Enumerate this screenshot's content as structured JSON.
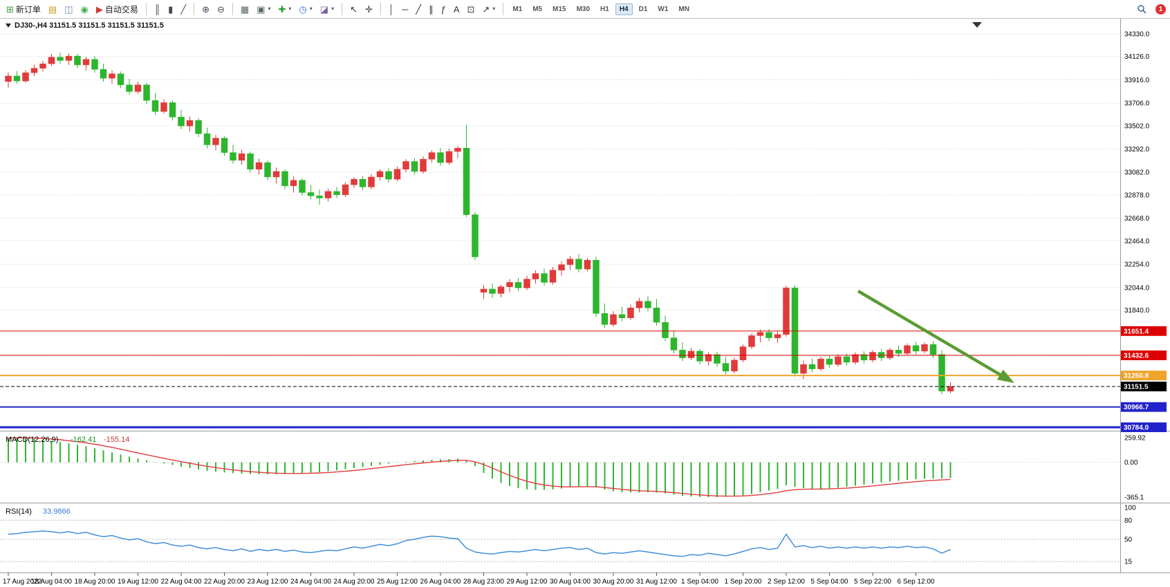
{
  "toolbar": {
    "buttons": [
      {
        "name": "new-order-button",
        "glyph": "⊞",
        "color": "#3f9e3f",
        "label": "新订单"
      },
      {
        "name": "profiles-button",
        "glyph": "▤",
        "color": "#c99b1f"
      },
      {
        "name": "print-preview-button",
        "glyph": "◫",
        "color": "#6b86b8"
      },
      {
        "name": "community-button",
        "glyph": "◉",
        "color": "#3fae49"
      },
      {
        "name": "autotrading-button",
        "glyph": "▶",
        "color": "#cc3b3b",
        "label": "自动交易"
      },
      {
        "sep": true
      },
      {
        "name": "bar-chart-mode-button",
        "glyph": "║",
        "color": "#445"
      },
      {
        "name": "candlestick-mode-button",
        "glyph": "▮",
        "color": "#445"
      },
      {
        "name": "line-chart-mode-button",
        "glyph": "╱",
        "color": "#445"
      },
      {
        "sep": true
      },
      {
        "name": "zoom-in-button",
        "glyph": "⊕",
        "color": "#445"
      },
      {
        "name": "zoom-out-button",
        "glyph": "⊖",
        "color": "#445"
      },
      {
        "sep": true
      },
      {
        "name": "tile-windows-button",
        "glyph": "▦",
        "color": "#566"
      },
      {
        "name": "cascade-windows-button",
        "glyph": "▣",
        "color": "#566",
        "caret": true
      },
      {
        "name": "indicators-button",
        "glyph": "✚",
        "color": "#2e9e2e",
        "caret": true
      },
      {
        "name": "periods-button",
        "glyph": "◷",
        "color": "#2e6fd0",
        "caret": true
      },
      {
        "name": "templates-button",
        "glyph": "◪",
        "color": "#7a5fa0",
        "caret": true
      },
      {
        "sep": true
      },
      {
        "name": "cursor-button",
        "glyph": "↖",
        "color": "#333"
      },
      {
        "name": "crosshair-button",
        "glyph": "✛",
        "color": "#333"
      },
      {
        "sep": true
      },
      {
        "name": "vertical-line-button",
        "glyph": "│",
        "color": "#333"
      },
      {
        "name": "horizontal-line-button",
        "glyph": "─",
        "color": "#333"
      },
      {
        "name": "trendline-button",
        "glyph": "╱",
        "color": "#333"
      },
      {
        "name": "channel-button",
        "glyph": "∥",
        "color": "#333"
      },
      {
        "name": "fibonacci-button",
        "glyph": "ƒ",
        "color": "#333"
      },
      {
        "name": "text-button",
        "glyph": "A",
        "color": "#333"
      },
      {
        "name": "label-button",
        "glyph": "⊡",
        "color": "#333"
      },
      {
        "name": "arrows-button",
        "glyph": "↗",
        "color": "#333",
        "caret": true
      },
      {
        "sep": true
      }
    ],
    "timeframes": [
      "M1",
      "M5",
      "M15",
      "M30",
      "H1",
      "H4",
      "D1",
      "W1",
      "MN"
    ],
    "active_timeframe": "H4",
    "notification_badge": "1"
  },
  "chart": {
    "header": "DJ30-,H4  31151.5 31151.5 31151.5 31151.5"
  },
  "chart_data": {
    "type": "candlestick",
    "symbol": "DJ30-",
    "timeframe": "H4",
    "ohlc_format": [
      "open",
      "high",
      "low",
      "close"
    ],
    "ohlc": [
      [
        33900,
        33985,
        33845,
        33950
      ],
      [
        33950,
        33995,
        33880,
        33905
      ],
      [
        33905,
        34005,
        33890,
        33980
      ],
      [
        33980,
        34050,
        33950,
        34020
      ],
      [
        34020,
        34085,
        33990,
        34060
      ],
      [
        34060,
        34150,
        34040,
        34120
      ],
      [
        34120,
        34160,
        34060,
        34090
      ],
      [
        34090,
        34155,
        34050,
        34130
      ],
      [
        34130,
        34150,
        34020,
        34050
      ],
      [
        34050,
        34125,
        34000,
        34100
      ],
      [
        34100,
        34130,
        33980,
        34010
      ],
      [
        34010,
        34060,
        33900,
        33930
      ],
      [
        33930,
        34000,
        33880,
        33970
      ],
      [
        33970,
        33990,
        33840,
        33870
      ],
      [
        33870,
        33925,
        33780,
        33810
      ],
      [
        33810,
        33900,
        33790,
        33870
      ],
      [
        33870,
        33890,
        33700,
        33730
      ],
      [
        33730,
        33795,
        33600,
        33630
      ],
      [
        33630,
        33740,
        33610,
        33710
      ],
      [
        33710,
        33730,
        33550,
        33580
      ],
      [
        33580,
        33645,
        33470,
        33500
      ],
      [
        33500,
        33585,
        33450,
        33550
      ],
      [
        33550,
        33570,
        33400,
        33430
      ],
      [
        33430,
        33485,
        33300,
        33330
      ],
      [
        33330,
        33420,
        33280,
        33390
      ],
      [
        33390,
        33405,
        33230,
        33260
      ],
      [
        33260,
        33330,
        33160,
        33190
      ],
      [
        33190,
        33285,
        33150,
        33250
      ],
      [
        33250,
        33270,
        33080,
        33110
      ],
      [
        33110,
        33205,
        33060,
        33170
      ],
      [
        33170,
        33190,
        33010,
        33040
      ],
      [
        33040,
        33125,
        32980,
        33090
      ],
      [
        33090,
        33110,
        32930,
        32960
      ],
      [
        32960,
        33045,
        32900,
        33010
      ],
      [
        33010,
        33030,
        32870,
        32900
      ],
      [
        32900,
        32965,
        32840,
        32870
      ],
      [
        32870,
        32925,
        32790,
        32850
      ],
      [
        32850,
        32935,
        32820,
        32910
      ],
      [
        32910,
        32950,
        32850,
        32880
      ],
      [
        32880,
        32995,
        32860,
        32970
      ],
      [
        32970,
        33040,
        32940,
        33020
      ],
      [
        33020,
        33050,
        32920,
        32950
      ],
      [
        32950,
        33065,
        32930,
        33040
      ],
      [
        33040,
        33110,
        33010,
        33090
      ],
      [
        33090,
        33120,
        32990,
        33020
      ],
      [
        33020,
        33135,
        33000,
        33110
      ],
      [
        33110,
        33200,
        33080,
        33180
      ],
      [
        33180,
        33210,
        33060,
        33090
      ],
      [
        33090,
        33225,
        33070,
        33200
      ],
      [
        33200,
        33280,
        33170,
        33260
      ],
      [
        33260,
        33300,
        33140,
        33170
      ],
      [
        33170,
        33295,
        33150,
        33270
      ],
      [
        33270,
        33320,
        33210,
        33300
      ],
      [
        33300,
        33510,
        32680,
        32700
      ],
      [
        32700,
        32725,
        32290,
        32320
      ],
      [
        32000,
        32065,
        31940,
        32030
      ],
      [
        32030,
        32080,
        31950,
        31990
      ],
      [
        31990,
        32070,
        31955,
        32050
      ],
      [
        32050,
        32120,
        32000,
        32090
      ],
      [
        32090,
        32130,
        32010,
        32040
      ],
      [
        32040,
        32150,
        32020,
        32120
      ],
      [
        32120,
        32200,
        32080,
        32170
      ],
      [
        32170,
        32215,
        32060,
        32090
      ],
      [
        32090,
        32230,
        32070,
        32200
      ],
      [
        32200,
        32280,
        32150,
        32250
      ],
      [
        32250,
        32330,
        32200,
        32300
      ],
      [
        32300,
        32345,
        32180,
        32210
      ],
      [
        32210,
        32310,
        32190,
        32290
      ],
      [
        32290,
        32320,
        31780,
        31810
      ],
      [
        31810,
        31900,
        31680,
        31710
      ],
      [
        31710,
        31830,
        31690,
        31800
      ],
      [
        31800,
        31870,
        31740,
        31770
      ],
      [
        31770,
        31890,
        31750,
        31860
      ],
      [
        31860,
        31950,
        31820,
        31920
      ],
      [
        31920,
        31965,
        31830,
        31860
      ],
      [
        31860,
        31940,
        31700,
        31730
      ],
      [
        31730,
        31790,
        31560,
        31590
      ],
      [
        31590,
        31660,
        31450,
        31480
      ],
      [
        31480,
        31550,
        31380,
        31410
      ],
      [
        31410,
        31500,
        31390,
        31470
      ],
      [
        31470,
        31490,
        31350,
        31380
      ],
      [
        31380,
        31460,
        31340,
        31440
      ],
      [
        31440,
        31465,
        31330,
        31360
      ],
      [
        31360,
        31420,
        31260,
        31290
      ],
      [
        31290,
        31410,
        31270,
        31390
      ],
      [
        31390,
        31530,
        31370,
        31510
      ],
      [
        31510,
        31630,
        31490,
        31610
      ],
      [
        31610,
        31665,
        31550,
        31640
      ],
      [
        31640,
        31670,
        31560,
        31590
      ],
      [
        31590,
        31655,
        31545,
        31620
      ],
      [
        31620,
        32060,
        31600,
        32040
      ],
      [
        32040,
        32065,
        31240,
        31270
      ],
      [
        31270,
        31385,
        31220,
        31350
      ],
      [
        31350,
        31405,
        31280,
        31310
      ],
      [
        31310,
        31420,
        31290,
        31400
      ],
      [
        31400,
        31435,
        31320,
        31350
      ],
      [
        31350,
        31445,
        31330,
        31420
      ],
      [
        31420,
        31450,
        31340,
        31370
      ],
      [
        31370,
        31460,
        31350,
        31440
      ],
      [
        31440,
        31470,
        31360,
        31390
      ],
      [
        31390,
        31480,
        31370,
        31460
      ],
      [
        31460,
        31490,
        31380,
        31410
      ],
      [
        31410,
        31500,
        31390,
        31480
      ],
      [
        31480,
        31520,
        31420,
        31450
      ],
      [
        31450,
        31540,
        31430,
        31520
      ],
      [
        31520,
        31555,
        31440,
        31470
      ],
      [
        31470,
        31550,
        31450,
        31530
      ],
      [
        31530,
        31560,
        31410,
        31440
      ],
      [
        31440,
        31480,
        31080,
        31110
      ],
      [
        31110,
        31190,
        31090,
        31151.5
      ]
    ],
    "time_labels": [
      "17 Aug 2022",
      "18 Aug 04:00",
      "18 Aug 20:00",
      "19 Aug 12:00",
      "22 Aug 04:00",
      "22 Aug 20:00",
      "23 Aug 12:00",
      "24 Aug 04:00",
      "24 Aug 20:00",
      "25 Aug 12:00",
      "26 Aug 04:00",
      "28 Aug 23:00",
      "29 Aug 12:00",
      "30 Aug 04:00",
      "30 Aug 20:00",
      "31 Aug 12:00",
      "1 Sep 04:00",
      "1 Sep 20:00",
      "2 Sep 12:00",
      "5 Sep 04:00",
      "5 Sep 22:00",
      "6 Sep 12:00"
    ],
    "candles_per_label": 5,
    "price_axis_labels": [
      [
        34330,
        "34330.0"
      ],
      [
        34126,
        "34126.0"
      ],
      [
        33916,
        "33916.0"
      ],
      [
        33706,
        "33706.0"
      ],
      [
        33502,
        "33502.0"
      ],
      [
        33292,
        "33292.0"
      ],
      [
        33082,
        "33082.0"
      ],
      [
        32878,
        "32878.0"
      ],
      [
        32668,
        "32668.0"
      ],
      [
        32464,
        "32464.0"
      ],
      [
        32254,
        "32254.0"
      ],
      [
        32044,
        "32044.0"
      ],
      [
        31840,
        "31840.0"
      ]
    ],
    "extra_gridlines": [
      31636,
      31426,
      31216,
      31006,
      30796
    ],
    "levels": [
      {
        "label": "31651.4",
        "price": 31651.4,
        "color_key": "level_red",
        "width": 1
      },
      {
        "label": "31432.6",
        "price": 31432.6,
        "color_key": "level_red",
        "width": 1
      },
      {
        "label": "31250.8",
        "price": 31250.8,
        "color_key": "level_orange",
        "width": 2
      },
      {
        "label": "31151.5",
        "price": 31151.5,
        "color_key": "current",
        "width": 1,
        "dashed": true
      },
      {
        "label": "30966.7",
        "price": 30966.7,
        "color_key": "level_blue",
        "width": 2
      },
      {
        "label": "30784.0",
        "price": 30784.0,
        "color_key": "level_blue",
        "width": 3
      }
    ],
    "current_price": 31151.5,
    "indicators": {
      "macd": {
        "title": "MACD(12,26,9)",
        "values_text": [
          "-162.41",
          "-155.14"
        ],
        "scale": [
          "259.92",
          "0.00",
          "-365.1"
        ],
        "histogram": [
          255,
          260,
          256,
          248,
          238,
          226,
          213,
          198,
          183,
          168,
          148,
          126,
          104,
          82,
          60,
          40,
          22,
          5,
          -12,
          -28,
          -45,
          -60,
          -74,
          -87,
          -97,
          -106,
          -113,
          -118,
          -122,
          -124,
          -125,
          -125,
          -123,
          -119,
          -114,
          -108,
          -101,
          -93,
          -83,
          -72,
          -60,
          -48,
          -36,
          -24,
          -13,
          -3,
          6,
          14,
          21,
          27,
          32,
          36,
          39,
          20,
          -40,
          -110,
          -170,
          -215,
          -248,
          -270,
          -283,
          -288,
          -288,
          -283,
          -274,
          -262,
          -252,
          -248,
          -262,
          -285,
          -302,
          -312,
          -316,
          -315,
          -312,
          -315,
          -325,
          -338,
          -352,
          -358,
          -362,
          -365,
          -363,
          -360,
          -355,
          -345,
          -330,
          -312,
          -295,
          -278,
          -240,
          -255,
          -268,
          -275,
          -276,
          -272,
          -265,
          -255,
          -244,
          -232,
          -220,
          -210,
          -200,
          -192,
          -184,
          -177,
          -172,
          -170,
          -168,
          -162.41
        ]
      },
      "rsi": {
        "title": "RSI(14)",
        "value_text": "33.9866",
        "scale": [
          [
            100,
            "100"
          ],
          [
            80,
            "80"
          ],
          [
            50,
            "50"
          ],
          [
            15,
            "15"
          ]
        ],
        "level_lines": [
          80,
          50,
          15
        ],
        "values": [
          58,
          59,
          61,
          62,
          63,
          62,
          60,
          62,
          59,
          61,
          57,
          54,
          56,
          52,
          49,
          51,
          46,
          43,
          45,
          41,
          39,
          41,
          37,
          35,
          37,
          34,
          32,
          35,
          31,
          34,
          32,
          34,
          31,
          33,
          30,
          29,
          31,
          33,
          32,
          35,
          38,
          36,
          39,
          42,
          40,
          43,
          48,
          50,
          53,
          55,
          54,
          52,
          51,
          36,
          30,
          28,
          27,
          29,
          31,
          30,
          32,
          34,
          32,
          34,
          36,
          37,
          34,
          36,
          29,
          27,
          29,
          28,
          30,
          32,
          30,
          28,
          26,
          24,
          23,
          26,
          25,
          28,
          26,
          24,
          27,
          31,
          35,
          37,
          34,
          36,
          58,
          38,
          40,
          37,
          39,
          36,
          38,
          36,
          38,
          36,
          38,
          36,
          38,
          37,
          39,
          37,
          38,
          35,
          28,
          33.99
        ]
      }
    },
    "colors": {
      "bull": "#e03b3b",
      "bear": "#2eb52e",
      "macd_hist": "#2eb52e",
      "macd_signal": "#e03b3b",
      "rsi": "#3f8fd8",
      "grid": "#c9c9c9",
      "level_red": "#dd0000",
      "level_orange": "#efa42c",
      "level_blue": "#2222cc",
      "current": "#000000",
      "arrow": "#5b9b33"
    },
    "arrow": {
      "from": [
        1241,
        394
      ],
      "to": [
        1467,
        527
      ]
    }
  }
}
